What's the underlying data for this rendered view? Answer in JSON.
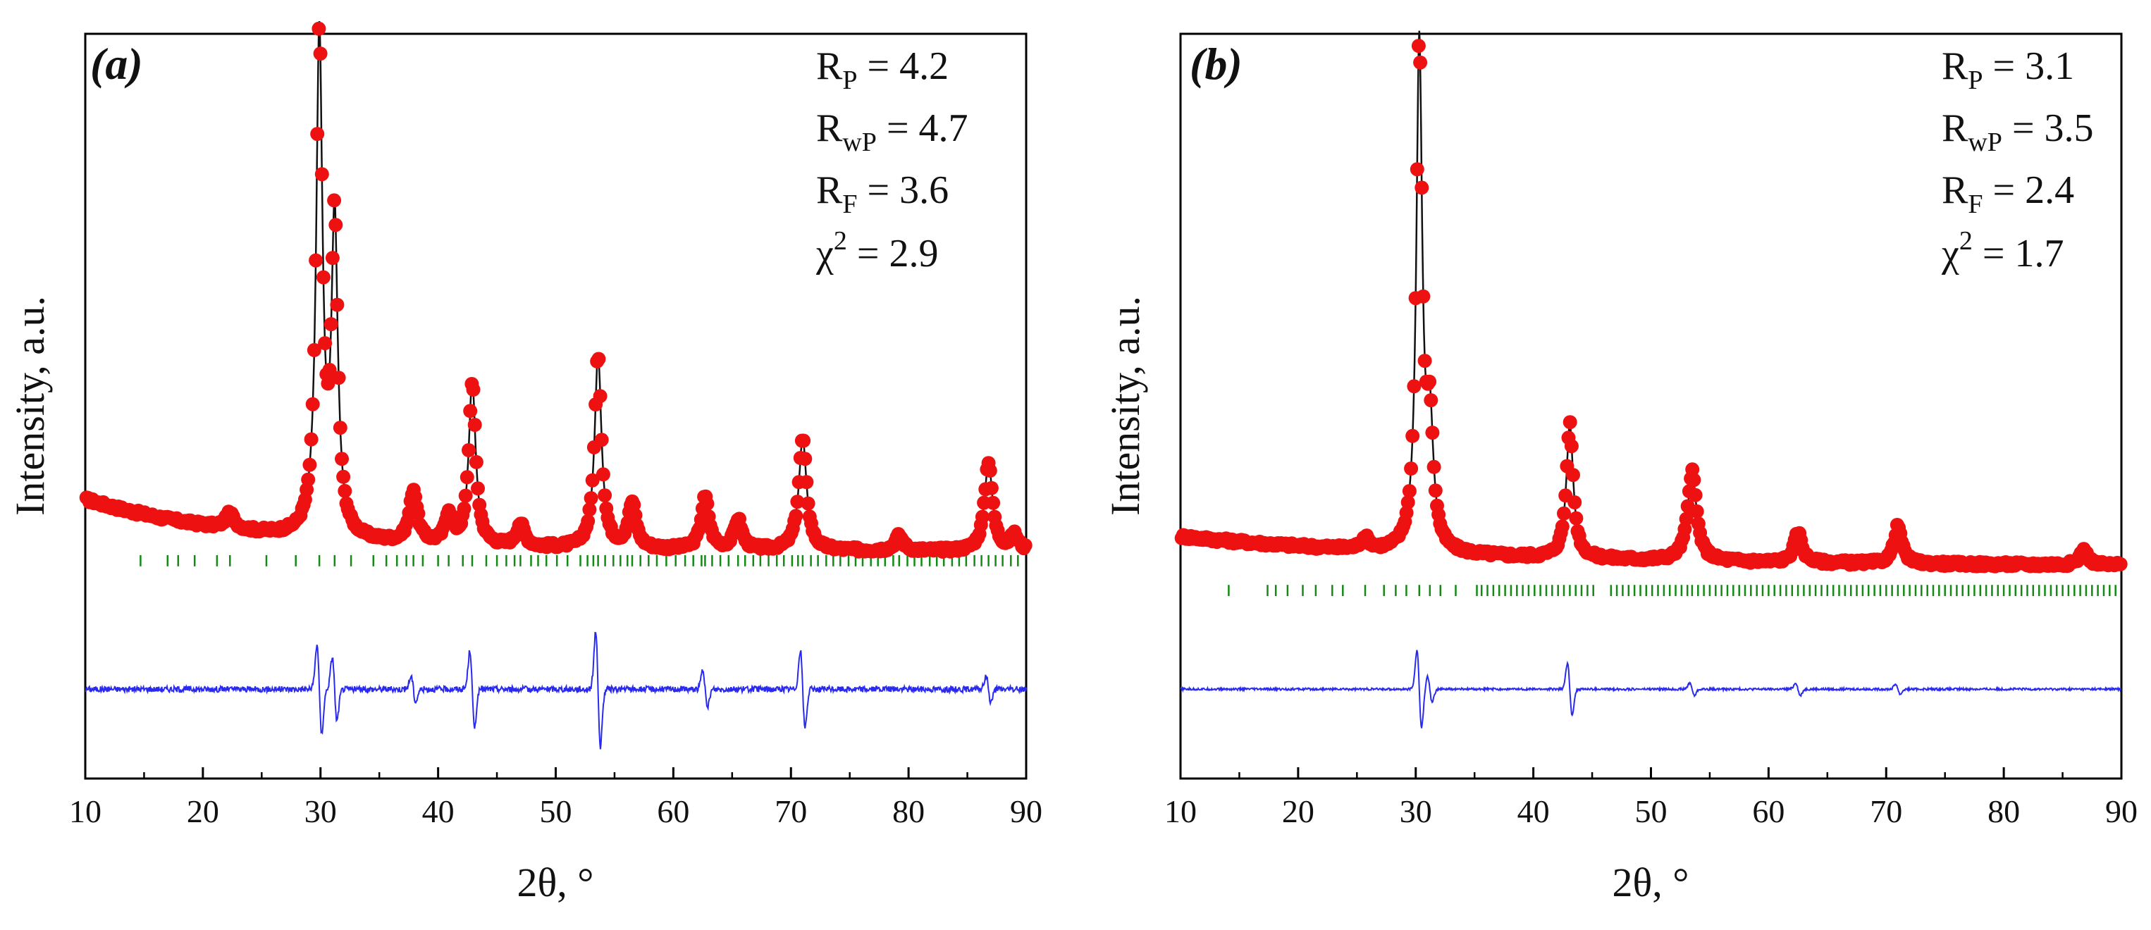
{
  "figure": {
    "xlabel": "2θ, °",
    "ylabel": "Intensity, a.u."
  },
  "chart_data": [
    {
      "type": "scatter",
      "panel_label": "(a)",
      "xlabel": "2θ, °",
      "ylabel": "Intensity, a.u.",
      "xlim": [
        10,
        90
      ],
      "xticks": [
        10,
        20,
        30,
        40,
        50,
        60,
        70,
        80,
        90
      ],
      "ylim": [
        0,
        1
      ],
      "legend_placement": "top-right",
      "stats": [
        {
          "symbol": "R",
          "sub": "P",
          "sup": "",
          "text": " = 4.2"
        },
        {
          "symbol": "R",
          "sub": "wP",
          "sup": "",
          "text": " = 4.7"
        },
        {
          "symbol": "R",
          "sub": "F",
          "sup": "",
          "text": " = 3.6"
        },
        {
          "symbol": "χ",
          "sub": "",
          "sup": "2",
          "text": " = 2.9"
        }
      ],
      "background": {
        "start": 0.375,
        "decay": 0.07,
        "end": 0.305
      },
      "peaks": [
        {
          "x": 22.3,
          "h": 0.02,
          "w": 0.45
        },
        {
          "x": 29.9,
          "h": 0.67,
          "w": 0.32
        },
        {
          "x": 31.2,
          "h": 0.42,
          "w": 0.32
        },
        {
          "x": 37.9,
          "h": 0.07,
          "w": 0.4
        },
        {
          "x": 40.9,
          "h": 0.04,
          "w": 0.35
        },
        {
          "x": 42.9,
          "h": 0.22,
          "w": 0.35
        },
        {
          "x": 47.0,
          "h": 0.03,
          "w": 0.4
        },
        {
          "x": 53.6,
          "h": 0.26,
          "w": 0.35
        },
        {
          "x": 56.5,
          "h": 0.06,
          "w": 0.4
        },
        {
          "x": 62.7,
          "h": 0.07,
          "w": 0.4
        },
        {
          "x": 65.5,
          "h": 0.04,
          "w": 0.4
        },
        {
          "x": 71.0,
          "h": 0.15,
          "w": 0.4
        },
        {
          "x": 79.2,
          "h": 0.02,
          "w": 0.4
        },
        {
          "x": 86.8,
          "h": 0.12,
          "w": 0.4
        },
        {
          "x": 89.0,
          "h": 0.02,
          "w": 0.4
        }
      ],
      "bragg_positions": [
        14.7,
        17.0,
        17.9,
        19.3,
        21.2,
        22.3,
        25.4,
        27.9,
        29.9,
        31.2,
        32.6,
        34.5,
        35.6,
        36.5,
        37.3,
        37.9,
        38.7,
        40.0,
        40.9,
        42.1,
        42.9,
        44.1,
        45.0,
        45.8,
        46.5,
        47.0,
        47.9,
        48.5,
        49.2,
        50.1,
        51.0,
        52.1,
        52.7,
        53.2,
        53.6,
        54.2,
        54.9,
        55.5,
        56.1,
        56.5,
        57.2,
        57.9,
        58.6,
        59.4,
        60.2,
        61.0,
        61.7,
        62.4,
        62.7,
        63.3,
        64.0,
        64.7,
        65.5,
        66.1,
        66.8,
        67.4,
        68.1,
        68.8,
        69.4,
        70.1,
        70.6,
        71.0,
        71.7,
        72.3,
        73.0,
        73.6,
        74.2,
        74.9,
        75.5,
        76.1,
        76.8,
        77.4,
        78.0,
        78.7,
        79.2,
        79.9,
        80.5,
        81.1,
        81.8,
        82.4,
        83.0,
        83.7,
        84.3,
        84.9,
        85.6,
        86.2,
        86.8,
        87.4,
        88.0,
        88.7,
        89.3
      ],
      "difference_baseline": 0.12,
      "difference_features": [
        {
          "x": 29.9,
          "a": 0.07
        },
        {
          "x": 31.2,
          "a": 0.05
        },
        {
          "x": 37.9,
          "a": 0.02
        },
        {
          "x": 42.9,
          "a": 0.06
        },
        {
          "x": 53.6,
          "a": 0.09
        },
        {
          "x": 62.7,
          "a": 0.03
        },
        {
          "x": 71.0,
          "a": 0.06
        },
        {
          "x": 86.8,
          "a": 0.02
        }
      ]
    },
    {
      "type": "scatter",
      "panel_label": "(b)",
      "xlabel": "2θ, °",
      "ylabel": "Intensity, a.u.",
      "xlim": [
        10,
        90
      ],
      "xticks": [
        10,
        20,
        30,
        40,
        50,
        60,
        70,
        80,
        90
      ],
      "ylim": [
        0,
        1
      ],
      "legend_placement": "top-right",
      "stats": [
        {
          "symbol": "R",
          "sub": "P",
          "sup": "",
          "text": " = 3.1"
        },
        {
          "symbol": "R",
          "sub": "wP",
          "sup": "",
          "text": " = 3.5"
        },
        {
          "symbol": "R",
          "sub": "F",
          "sup": "",
          "text": " = 2.4"
        },
        {
          "symbol": "χ",
          "sub": "",
          "sup": "2",
          "text": " = 1.7"
        }
      ],
      "background": {
        "start": 0.325,
        "decay": 0.04,
        "end": 0.285
      },
      "peaks": [
        {
          "x": 25.7,
          "h": 0.015,
          "w": 0.4
        },
        {
          "x": 30.3,
          "h": 0.68,
          "w": 0.3
        },
        {
          "x": 31.2,
          "h": 0.16,
          "w": 0.35
        },
        {
          "x": 43.1,
          "h": 0.18,
          "w": 0.35
        },
        {
          "x": 53.5,
          "h": 0.12,
          "w": 0.45
        },
        {
          "x": 62.5,
          "h": 0.04,
          "w": 0.4
        },
        {
          "x": 71.0,
          "h": 0.05,
          "w": 0.4
        },
        {
          "x": 86.8,
          "h": 0.02,
          "w": 0.4
        }
      ],
      "bragg_positions": [
        14.1,
        17.4,
        18.1,
        19.1,
        20.4,
        21.5,
        22.9,
        23.8,
        25.7,
        27.3,
        28.3,
        29.2,
        30.3,
        31.2,
        32.1,
        33.4,
        35.2,
        35.6,
        36.1,
        36.6,
        37.1,
        37.6,
        38.1,
        38.6,
        39.1,
        39.6,
        40.1,
        40.6,
        41.1,
        41.6,
        42.1,
        42.6,
        43.1,
        43.6,
        44.1,
        44.6,
        45.1,
        46.6,
        47.1,
        47.6,
        48.1,
        48.6,
        49.1,
        49.6,
        50.1,
        50.6,
        51.1,
        51.6,
        52.1,
        52.6,
        53.1,
        53.5,
        54.0,
        54.5,
        55.0,
        55.5,
        56.0,
        56.5,
        57.0,
        57.5,
        58.0,
        58.5,
        59.0,
        59.5,
        60.0,
        60.5,
        61.0,
        61.5,
        62.0,
        62.5,
        63.0,
        63.5,
        64.0,
        64.5,
        65.0,
        65.5,
        66.0,
        66.5,
        67.0,
        67.5,
        68.0,
        68.5,
        69.0,
        69.5,
        70.0,
        70.5,
        71.0,
        71.5,
        72.0,
        72.5,
        73.0,
        73.5,
        74.0,
        74.5,
        75.0,
        75.5,
        76.0,
        76.5,
        77.0,
        77.5,
        78.0,
        78.5,
        79.0,
        79.5,
        80.0,
        80.5,
        81.0,
        81.5,
        82.0,
        82.5,
        83.0,
        83.5,
        84.0,
        84.5,
        85.0,
        85.5,
        86.0,
        86.5,
        87.0,
        87.5,
        88.0,
        88.5,
        89.0,
        89.5
      ],
      "difference_baseline": 0.12,
      "difference_features": [
        {
          "x": 30.3,
          "a": 0.06
        },
        {
          "x": 31.2,
          "a": 0.02
        },
        {
          "x": 43.1,
          "a": 0.04
        },
        {
          "x": 53.5,
          "a": 0.01
        },
        {
          "x": 62.5,
          "a": 0.01
        },
        {
          "x": 71.0,
          "a": 0.008
        }
      ]
    }
  ]
}
